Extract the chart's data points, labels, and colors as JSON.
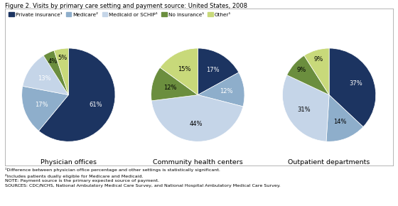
{
  "title": "Figure 2. Visits by primary care setting and payment source: United States, 2008",
  "legend_labels": [
    "Private insurance¹",
    "Medicare²",
    "Medicaid or SCHIP¹",
    "No insurance¹",
    "Other¹"
  ],
  "colors": [
    "#1c3461",
    "#8eaecb",
    "#c5d5e8",
    "#6b8e3e",
    "#c8d97a"
  ],
  "charts": [
    {
      "title": "Physician offices",
      "values": [
        61,
        17,
        13,
        4,
        5
      ],
      "labels": [
        "61%",
        "17%",
        "13%",
        "4%",
        "5%"
      ],
      "label_colors": [
        "white",
        "white",
        "white",
        "black",
        "black"
      ]
    },
    {
      "title": "Community health centers",
      "values": [
        17,
        12,
        44,
        12,
        15
      ],
      "labels": [
        "17%",
        "12%",
        "44%",
        "12%",
        "15%"
      ],
      "label_colors": [
        "white",
        "white",
        "black",
        "black",
        "black"
      ]
    },
    {
      "title": "Outpatient departments",
      "values": [
        37,
        14,
        31,
        9,
        9
      ],
      "labels": [
        "37%",
        "14%",
        "31%",
        "9%",
        "9%"
      ],
      "label_colors": [
        "white",
        "black",
        "black",
        "black",
        "black"
      ]
    }
  ],
  "footnotes": [
    "¹Difference between physician office percentage and other settings is statistically significant.",
    "²Includes patients dually eligible for Medicare and Medicaid.",
    "NOTE: Payment source is the primary expected source of payment.",
    "SOURCES: CDC/NCHS, National Ambulatory Medical Care Survey, and National Hospital Ambulatory Medical Care Survey."
  ]
}
